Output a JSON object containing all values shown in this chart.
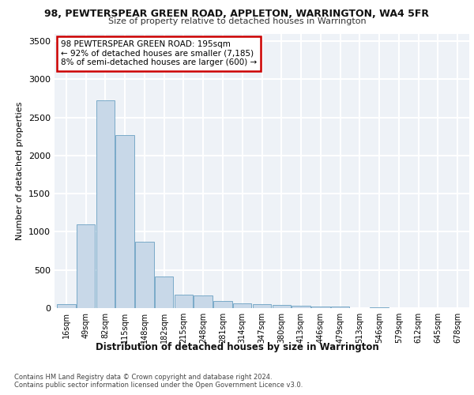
{
  "title": "98, PEWTERSPEAR GREEN ROAD, APPLETON, WARRINGTON, WA4 5FR",
  "subtitle": "Size of property relative to detached houses in Warrington",
  "xlabel": "Distribution of detached houses by size in Warrington",
  "ylabel": "Number of detached properties",
  "bar_labels": [
    "16sqm",
    "49sqm",
    "82sqm",
    "115sqm",
    "148sqm",
    "182sqm",
    "215sqm",
    "248sqm",
    "281sqm",
    "314sqm",
    "347sqm",
    "380sqm",
    "413sqm",
    "446sqm",
    "479sqm",
    "513sqm",
    "546sqm",
    "579sqm",
    "612sqm",
    "645sqm",
    "678sqm"
  ],
  "bar_values": [
    50,
    1100,
    2720,
    2270,
    870,
    415,
    175,
    165,
    90,
    60,
    50,
    40,
    30,
    25,
    20,
    0,
    10,
    0,
    0,
    0,
    0
  ],
  "bar_color": "#c8d8e8",
  "bar_edge_color": "#7aaac8",
  "annotation_text": "98 PEWTERSPEAR GREEN ROAD: 195sqm\n← 92% of detached houses are smaller (7,185)\n8% of semi-detached houses are larger (600) →",
  "annotation_box_color": "#ffffff",
  "annotation_border_color": "#cc0000",
  "ylim": [
    0,
    3600
  ],
  "yticks": [
    0,
    500,
    1000,
    1500,
    2000,
    2500,
    3000,
    3500
  ],
  "background_color": "#eef2f7",
  "grid_color": "#ffffff",
  "footer_line1": "Contains HM Land Registry data © Crown copyright and database right 2024.",
  "footer_line2": "Contains public sector information licensed under the Open Government Licence v3.0."
}
